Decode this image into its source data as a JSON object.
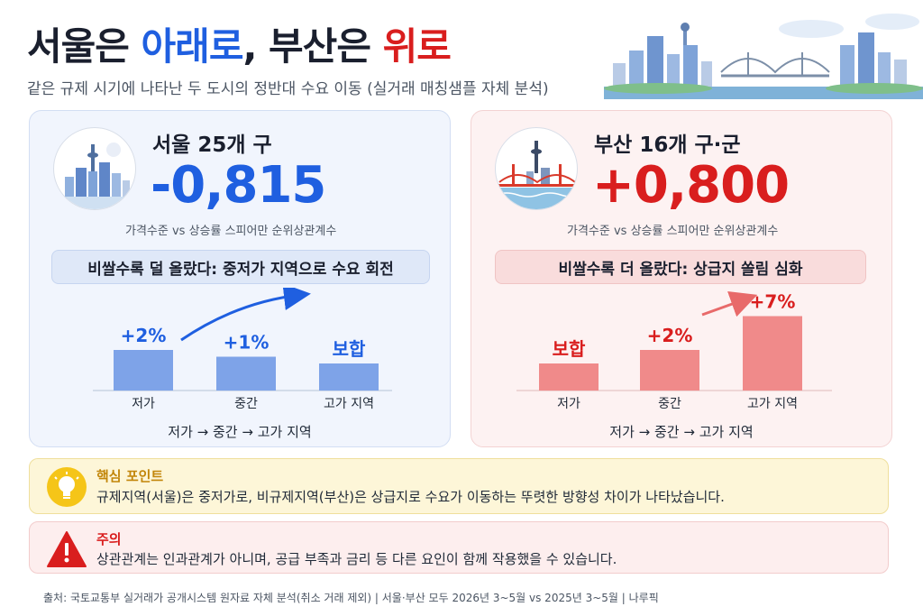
{
  "title": {
    "part1": "서울은 ",
    "part2": "아래로",
    "part3": ", 부산은 ",
    "part4": "위로"
  },
  "subtitle": "같은 규제 시기에 나타난 두 도시의 정반대 수요 이동 (실거래 매칭샘플 자체 분석)",
  "colors": {
    "seoul_accent": "#1f5fe0",
    "busan_accent": "#d91e1e",
    "seoul_bar": "#7ea3e8",
    "busan_bar": "#f08a8a"
  },
  "seoul": {
    "region": "서울 25개 구",
    "coefficient": "-0,815",
    "coef_label": "가격수준 vs 상승률 스피어만 순위상관계수",
    "pill": "비쌀수록 덜 올랐다: 중저가 지역으로 수요 회전",
    "flow": "저가 → 중간 → 고가 지역",
    "icon": "seoul-tower-skyline-icon"
  },
  "busan": {
    "region": "부산 16개 구·군",
    "coefficient": "+0,800",
    "coef_label": "가격수준 vs 상승률 스피어만 순위상관계수",
    "pill": "비쌀수록 더 올랐다: 상급지 쏠림 심화",
    "flow": "저가 → 중간 → 고가 지역",
    "icon": "busan-bridge-tower-icon"
  },
  "chart_data": [
    {
      "type": "bar",
      "categories": [
        "저가",
        "중간",
        "고가 지역"
      ],
      "values": [
        2,
        1,
        0
      ],
      "data_labels": [
        "+2%",
        "+1%",
        "보합"
      ],
      "ylim": [
        0,
        8
      ]
    },
    {
      "type": "bar",
      "categories": [
        "저가",
        "중간",
        "고가 지역"
      ],
      "values": [
        0,
        2,
        7
      ],
      "data_labels": [
        "보합",
        "+2%",
        "+7%"
      ],
      "ylim": [
        0,
        8
      ]
    }
  ],
  "key_point": {
    "heading": "핵심 포인트",
    "body": "규제지역(서울)은 중저가로, 비규제지역(부산)은 상급지로 수요가 이동하는 뚜렷한 방향성 차이가 나타났습니다.",
    "icon": "lightbulb-icon"
  },
  "caution": {
    "heading": "주의",
    "body": "상관관계는 인과관계가 아니며, 공급 부족과 금리 등 다른 요인이 함께 작용했을 수 있습니다.",
    "icon": "warning-icon"
  },
  "source": "출처: 국토교통부 실거래가 공개시스템 원자료 자체 분석(취소 거래 제외) | 서울·부산 모두 2026년 3~5월 vs 2025년 3~5월 | 나루픽"
}
